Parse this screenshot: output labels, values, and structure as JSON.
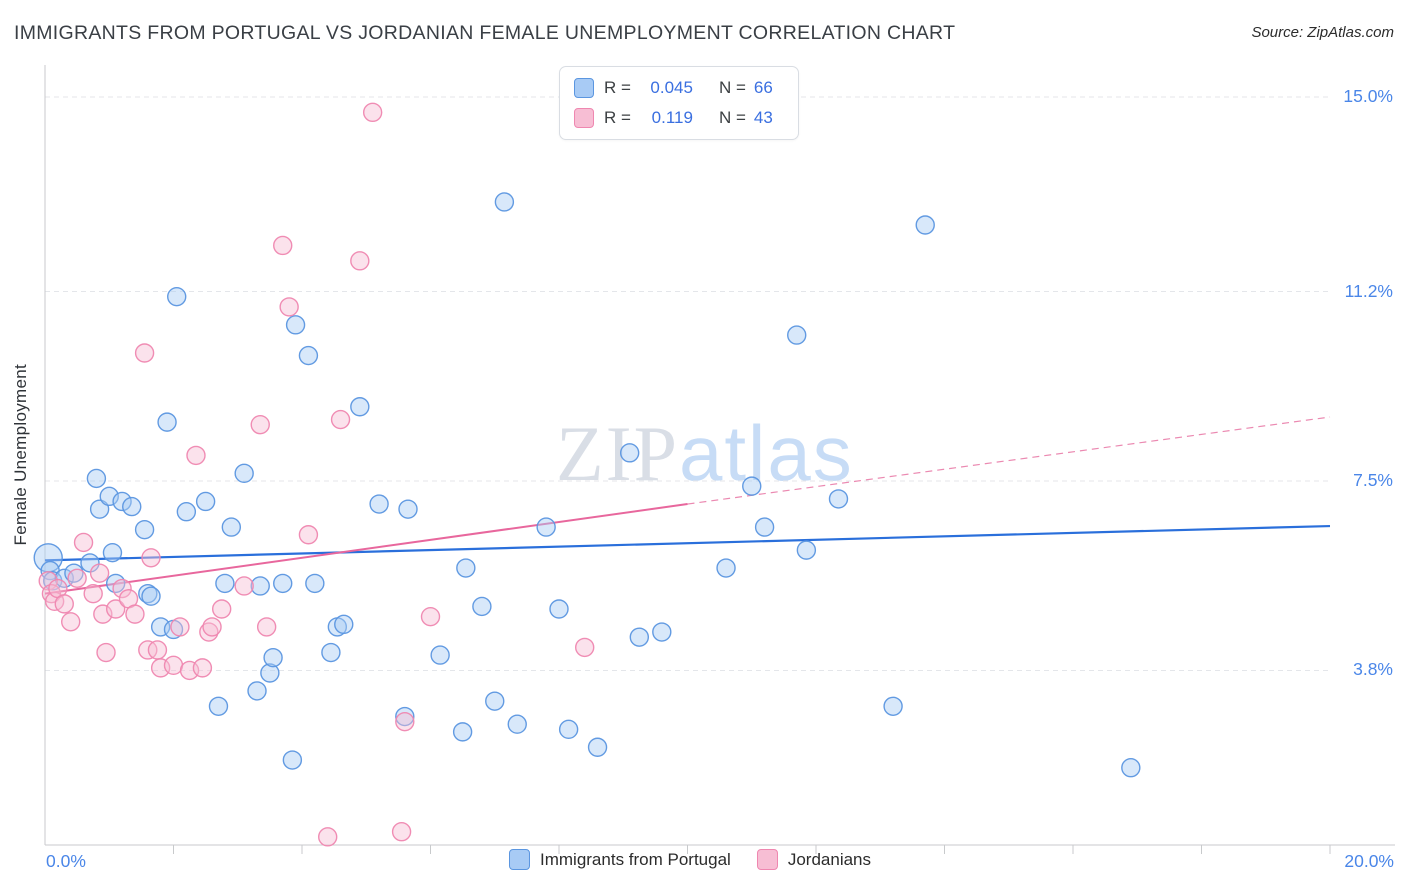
{
  "header": {
    "title": "IMMIGRANTS FROM PORTUGAL VS JORDANIAN FEMALE UNEMPLOYMENT CORRELATION CHART",
    "source": "Source: ZipAtlas.com"
  },
  "stats_box": {
    "rows": [
      {
        "swatch": "blue",
        "r_label": "R =",
        "r_value": "0.045",
        "n_label": "N =",
        "n_value": "66"
      },
      {
        "swatch": "pink",
        "r_label": "R =",
        "r_value": "0.119",
        "n_label": "N =",
        "n_value": "43"
      }
    ]
  },
  "axes": {
    "y_label": "Female Unemployment",
    "x_left_label": "0.0%",
    "x_right_label": "20.0%"
  },
  "legend": [
    {
      "label": "Immigrants from Portugal",
      "swatch": "blue"
    },
    {
      "label": "Jordanians",
      "swatch": "pink"
    }
  ],
  "watermark": {
    "zip": "ZIP",
    "atlas": "atlas"
  },
  "colors": {
    "blue_fill": "#a8cbf5",
    "blue_stroke": "#5b96e0",
    "pink_fill": "#f7bed4",
    "pink_stroke": "#ef87b0",
    "accent_text": "#3a6fe0",
    "tick_label": "#4a86e8",
    "trend_blue": "#2a6fdb",
    "trend_pink": "#e8679d",
    "grid": "#e4e6ea",
    "axis": "#c8cacc"
  },
  "chart_data": {
    "type": "scatter",
    "title": "IMMIGRANTS FROM PORTUGAL VS JORDANIAN FEMALE UNEMPLOYMENT CORRELATION CHART",
    "xlabel": "",
    "ylabel": "Female Unemployment",
    "xlim": [
      0,
      20
    ],
    "ylim": [
      0,
      15.6
    ],
    "grid": "horizontal-dashed",
    "legend_position": "bottom",
    "y_ticks": [
      {
        "value": 3.8,
        "label": "3.8%"
      },
      {
        "value": 7.5,
        "label": "7.5%"
      },
      {
        "value": 11.2,
        "label": "11.2%"
      },
      {
        "value": 15.0,
        "label": "15.0%"
      }
    ],
    "x_ticks": {
      "min_label": "0.0%",
      "max_label": "20.0%",
      "interval": 2
    },
    "series": [
      {
        "name": "Immigrants from Portugal",
        "point_name": "portugal-data-point",
        "fill": "#a8cbf5",
        "stroke": "#5b96e0",
        "r": 0.045,
        "n": 66,
        "points": [
          [
            0.05,
            6.0,
            14
          ],
          [
            0.08,
            5.75
          ],
          [
            0.12,
            5.55
          ],
          [
            0.3,
            5.6
          ],
          [
            0.45,
            5.7
          ],
          [
            0.7,
            5.9
          ],
          [
            0.8,
            7.55
          ],
          [
            0.85,
            6.95
          ],
          [
            1.0,
            7.2
          ],
          [
            1.05,
            6.1
          ],
          [
            1.1,
            5.5
          ],
          [
            1.2,
            7.1
          ],
          [
            1.35,
            7.0
          ],
          [
            1.55,
            6.55
          ],
          [
            1.6,
            5.3
          ],
          [
            1.65,
            5.25
          ],
          [
            1.8,
            4.65
          ],
          [
            1.9,
            8.65
          ],
          [
            2.0,
            4.6
          ],
          [
            2.05,
            11.1
          ],
          [
            2.2,
            6.9
          ],
          [
            2.5,
            7.1
          ],
          [
            2.7,
            3.1
          ],
          [
            2.8,
            5.5
          ],
          [
            2.9,
            6.6
          ],
          [
            3.1,
            7.65
          ],
          [
            3.3,
            3.4
          ],
          [
            3.35,
            5.45
          ],
          [
            3.5,
            3.75
          ],
          [
            3.55,
            4.05
          ],
          [
            3.7,
            5.5
          ],
          [
            3.85,
            2.05
          ],
          [
            3.9,
            10.55
          ],
          [
            4.1,
            9.95
          ],
          [
            4.2,
            5.5
          ],
          [
            4.45,
            4.15
          ],
          [
            4.55,
            4.65
          ],
          [
            4.65,
            4.7
          ],
          [
            4.9,
            8.95
          ],
          [
            5.2,
            7.05
          ],
          [
            5.6,
            2.9
          ],
          [
            5.65,
            6.95
          ],
          [
            6.15,
            4.1
          ],
          [
            6.5,
            2.6
          ],
          [
            6.55,
            5.8
          ],
          [
            6.8,
            5.05
          ],
          [
            7.0,
            3.2
          ],
          [
            7.15,
            12.95
          ],
          [
            7.35,
            2.75
          ],
          [
            7.8,
            6.6
          ],
          [
            8.0,
            5.0
          ],
          [
            8.15,
            2.65
          ],
          [
            8.35,
            14.65
          ],
          [
            8.6,
            2.3
          ],
          [
            9.1,
            8.05
          ],
          [
            9.25,
            4.45
          ],
          [
            9.6,
            4.55
          ],
          [
            10.6,
            5.8
          ],
          [
            11.0,
            7.4
          ],
          [
            11.2,
            6.6
          ],
          [
            11.7,
            10.35
          ],
          [
            11.85,
            6.15
          ],
          [
            12.35,
            7.15
          ],
          [
            13.2,
            3.1
          ],
          [
            13.7,
            12.5
          ],
          [
            16.9,
            1.9
          ]
        ]
      },
      {
        "name": "Jordanians",
        "point_name": "jordanian-data-point",
        "fill": "#f7bed4",
        "stroke": "#ef87b0",
        "r": 0.119,
        "n": 43,
        "points": [
          [
            0.05,
            5.55
          ],
          [
            0.1,
            5.3
          ],
          [
            0.15,
            5.15
          ],
          [
            0.2,
            5.4
          ],
          [
            0.3,
            5.1
          ],
          [
            0.4,
            4.75
          ],
          [
            0.5,
            5.6
          ],
          [
            0.6,
            6.3
          ],
          [
            0.75,
            5.3
          ],
          [
            0.85,
            5.7
          ],
          [
            0.9,
            4.9
          ],
          [
            0.95,
            4.15
          ],
          [
            1.1,
            5.0
          ],
          [
            1.2,
            5.4
          ],
          [
            1.3,
            5.2
          ],
          [
            1.4,
            4.9
          ],
          [
            1.55,
            10.0
          ],
          [
            1.6,
            4.2
          ],
          [
            1.65,
            6.0
          ],
          [
            1.75,
            4.2
          ],
          [
            1.8,
            3.85
          ],
          [
            2.0,
            3.9
          ],
          [
            2.1,
            4.65
          ],
          [
            2.25,
            3.8
          ],
          [
            2.35,
            8.0
          ],
          [
            2.45,
            3.85
          ],
          [
            2.55,
            4.55
          ],
          [
            2.6,
            4.65
          ],
          [
            2.75,
            5.0
          ],
          [
            3.1,
            5.45
          ],
          [
            3.35,
            8.6
          ],
          [
            3.45,
            4.65
          ],
          [
            3.7,
            12.1
          ],
          [
            3.8,
            10.9
          ],
          [
            4.1,
            6.45
          ],
          [
            4.4,
            0.55
          ],
          [
            4.6,
            8.7
          ],
          [
            4.9,
            11.8
          ],
          [
            5.1,
            14.7
          ],
          [
            5.55,
            0.65
          ],
          [
            5.6,
            2.8
          ],
          [
            6.0,
            4.85
          ],
          [
            8.4,
            4.25
          ]
        ]
      }
    ],
    "trend_lines": [
      {
        "name": "portugal-trend-line",
        "color": "#2a6fdb",
        "width": 2.2,
        "x1": 0,
        "y1": 5.95,
        "x2": 20,
        "y2": 6.62,
        "dashed": false
      },
      {
        "name": "jordanians-trend-line",
        "color": "#e8679d",
        "width": 2,
        "x1": 0,
        "y1": 5.3,
        "x2": 10,
        "y2": 7.05,
        "dashed": false
      },
      {
        "name": "jordanians-trend-line-extrapolated",
        "color": "#eb89b1",
        "width": 1.2,
        "x1": 10,
        "y1": 7.05,
        "x2": 20,
        "y2": 8.75,
        "dashed": true
      }
    ]
  }
}
